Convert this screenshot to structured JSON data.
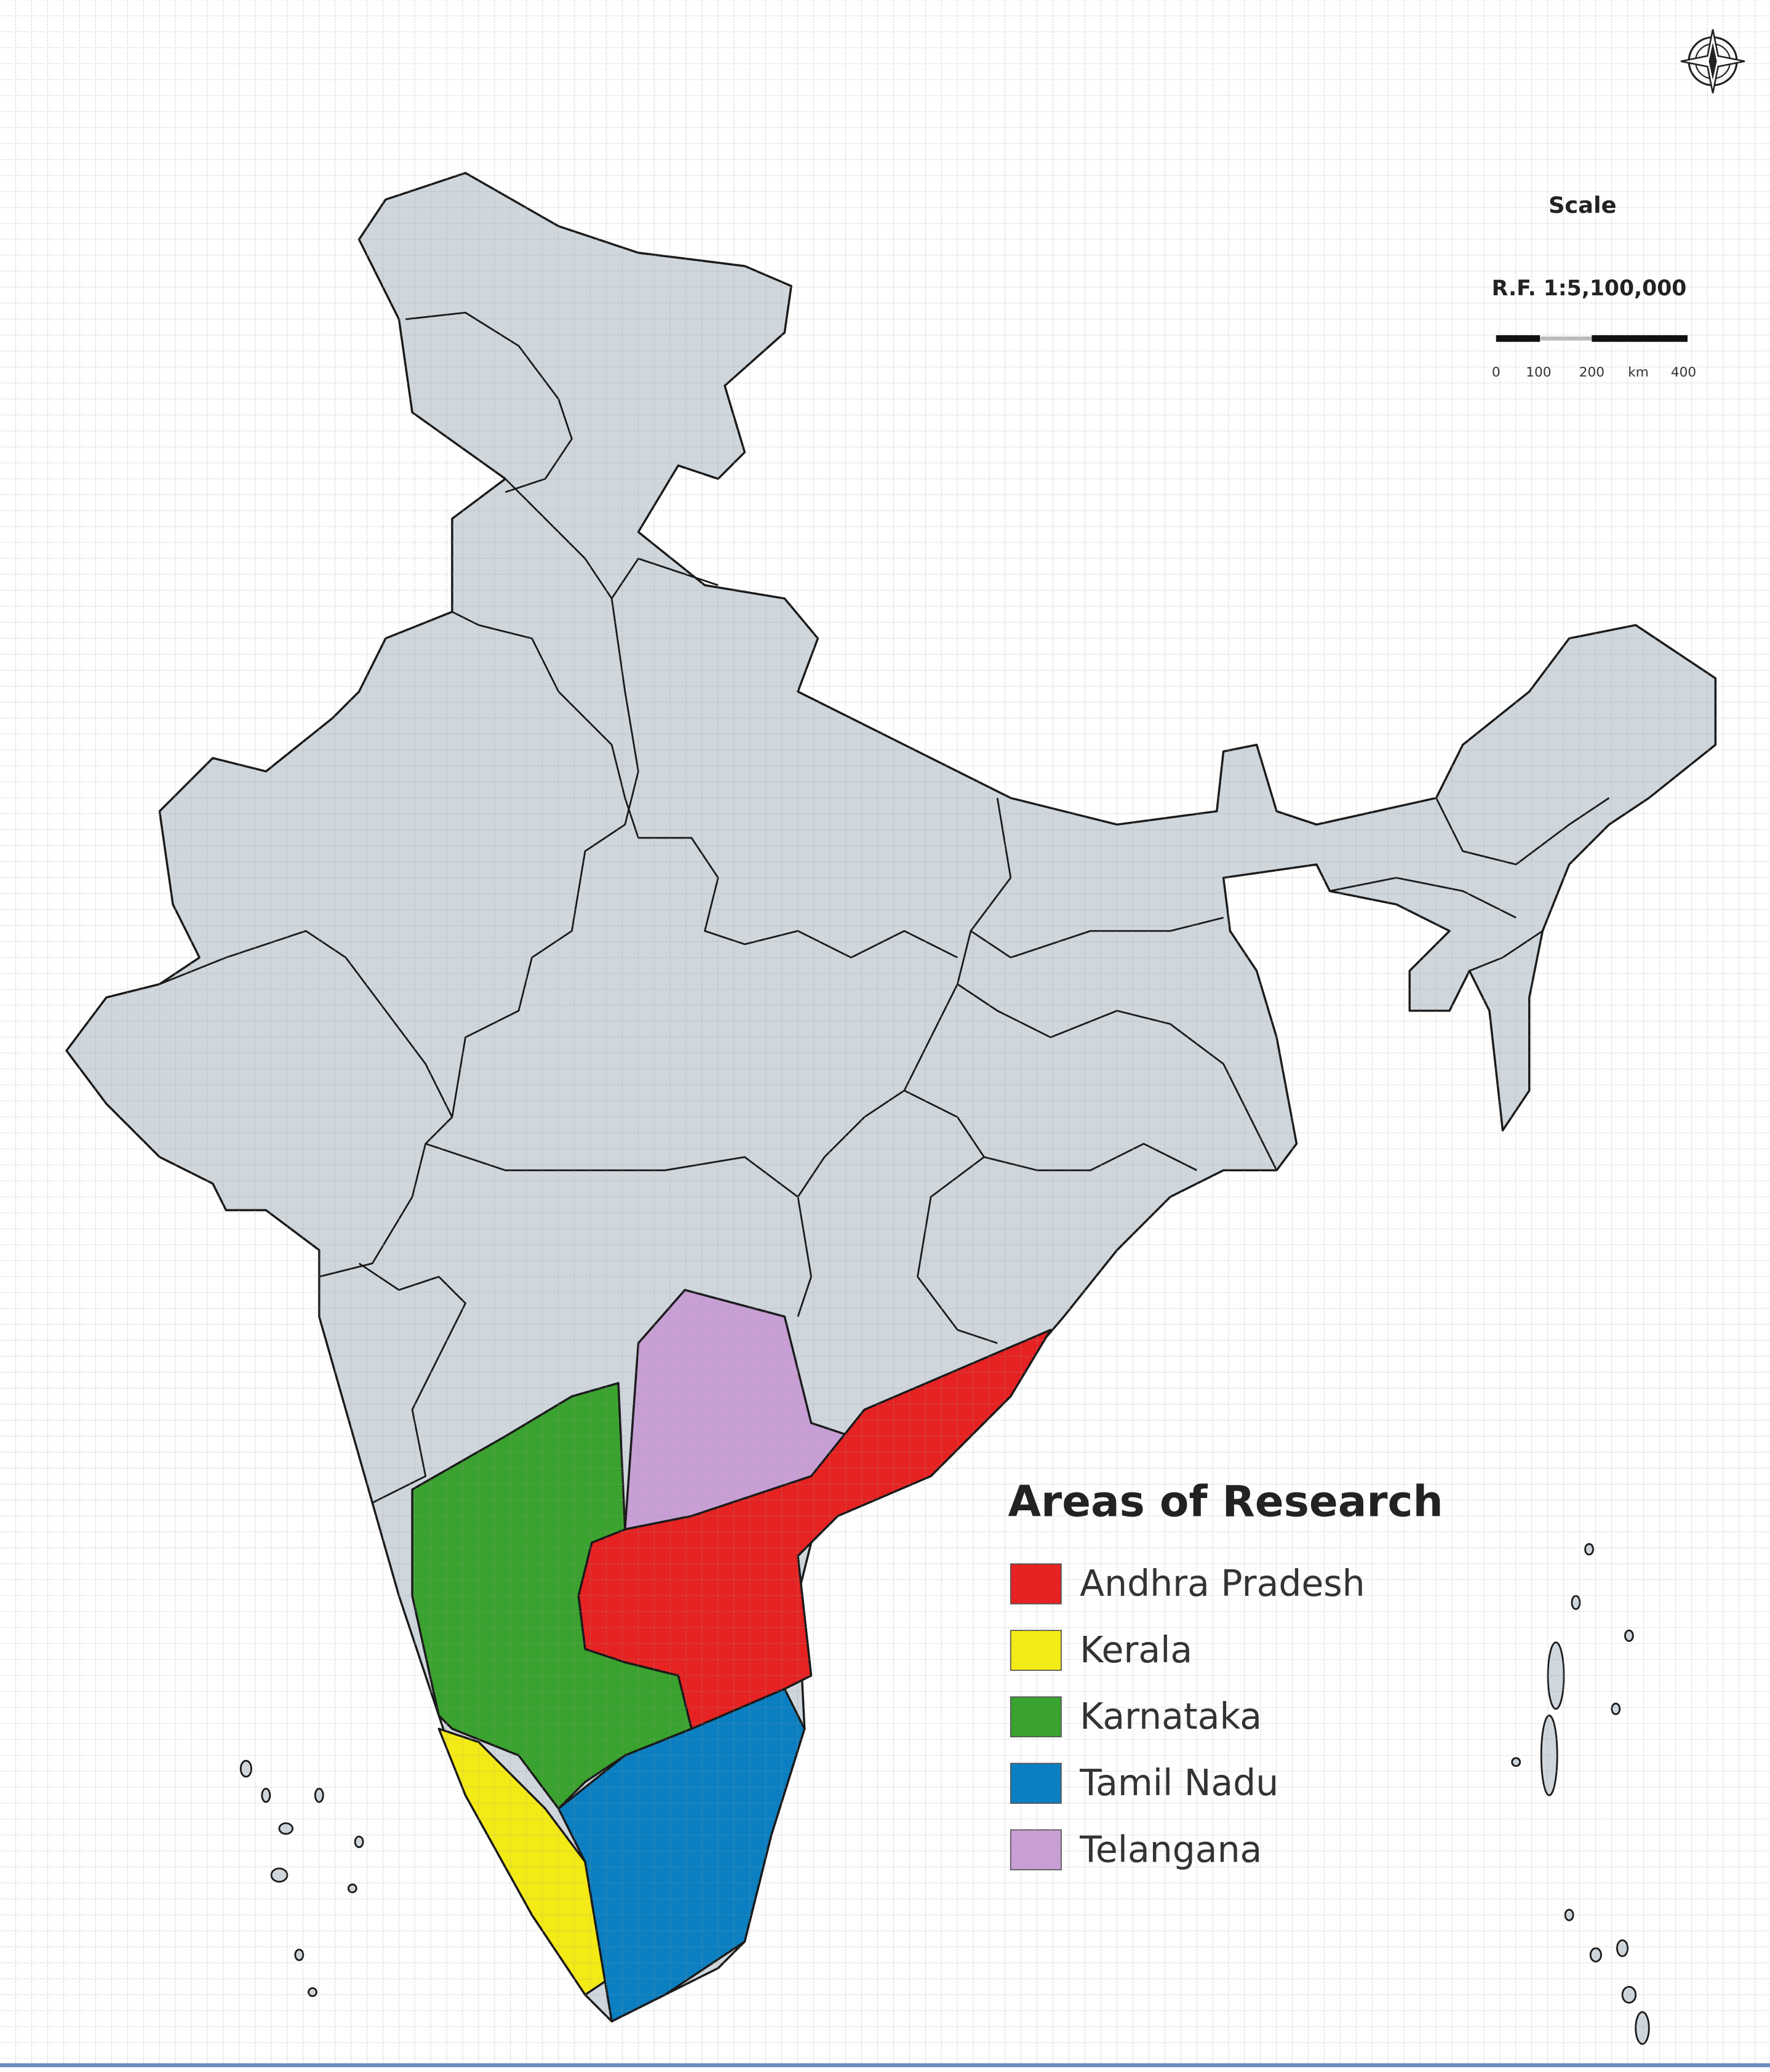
{
  "scale": {
    "title": "Scale",
    "ratio": "R.F. 1:5,100,000",
    "ticks": [
      "0",
      "100",
      "200",
      "km",
      "400"
    ]
  },
  "legend": {
    "title": "Areas of Research",
    "items": [
      {
        "label": "Andhra Pradesh",
        "color": "#e62222"
      },
      {
        "label": "Kerala",
        "color": "#f4ea16"
      },
      {
        "label": "Karnataka",
        "color": "#3aa22e"
      },
      {
        "label": "Tamil Nadu",
        "color": "#0b7fc1"
      },
      {
        "label": "Telangana",
        "color": "#c79fd5"
      }
    ]
  }
}
